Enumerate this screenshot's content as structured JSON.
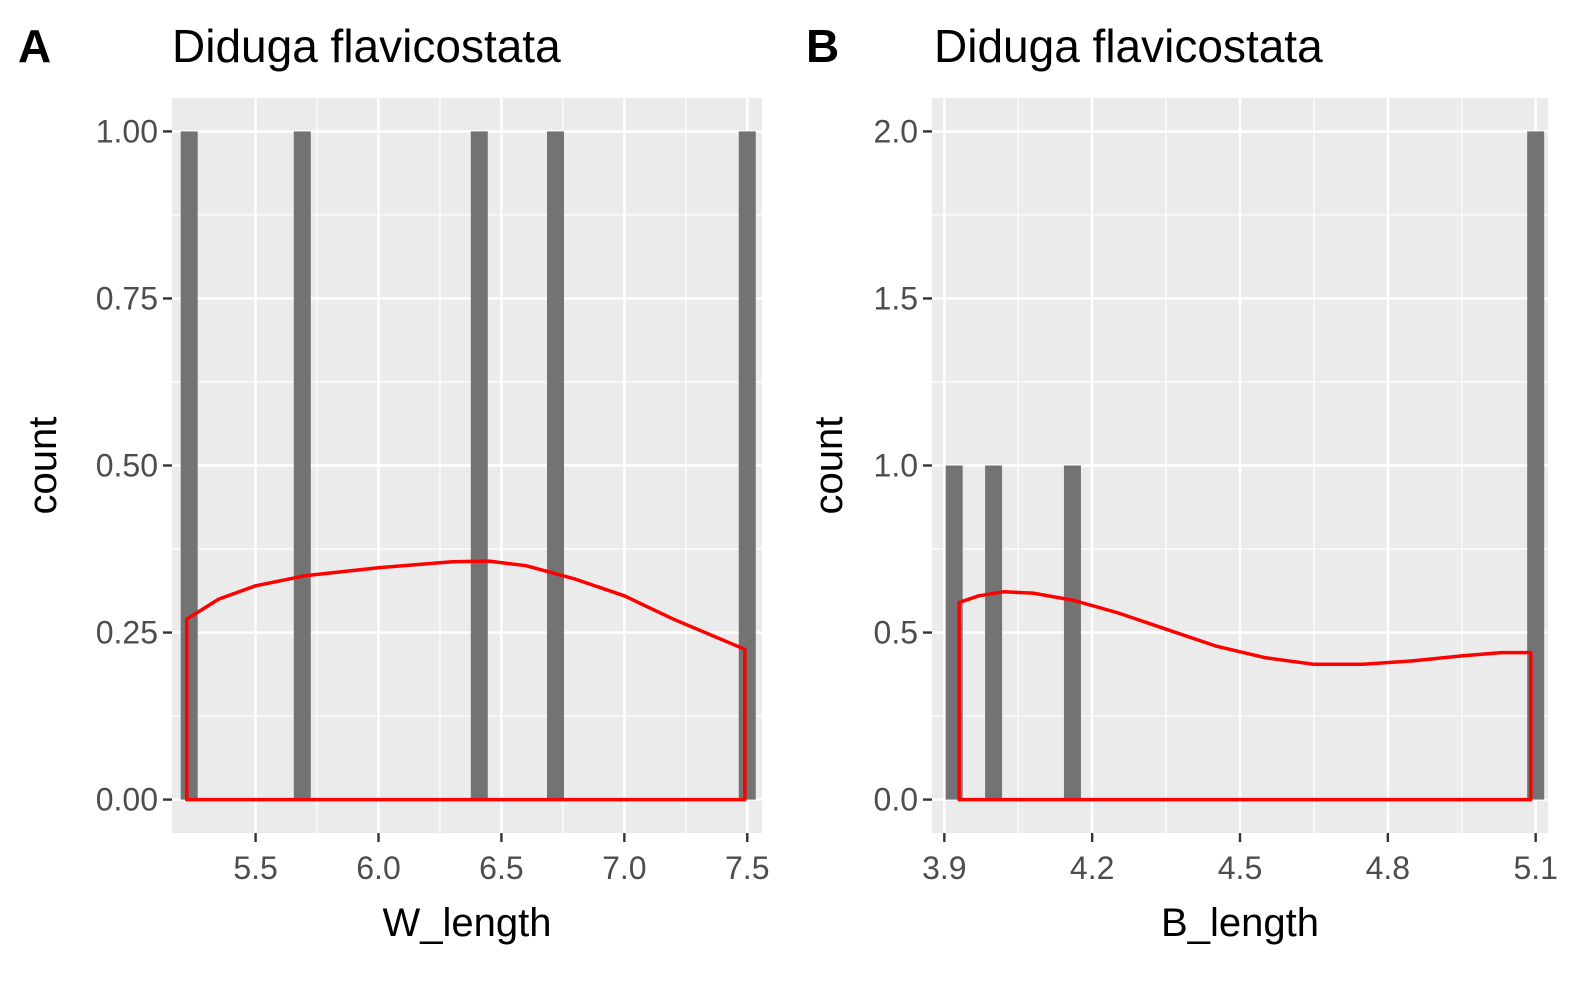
{
  "chart_data": [
    {
      "type": "bar",
      "panel_tag": "A",
      "title": "Diduga flavicostata",
      "xlabel": "W_length",
      "ylabel": "count",
      "xlim": [
        5.16,
        7.56
      ],
      "ylim": [
        -0.05,
        1.05
      ],
      "x_ticks": [
        "5.5",
        "6.0",
        "6.5",
        "7.0",
        "7.5"
      ],
      "y_ticks": [
        "0.00",
        "0.25",
        "0.50",
        "0.75",
        "1.00"
      ],
      "bars": [
        {
          "x": 5.23,
          "count": 1
        },
        {
          "x": 5.69,
          "count": 1
        },
        {
          "x": 6.41,
          "count": 1
        },
        {
          "x": 6.72,
          "count": 1
        },
        {
          "x": 7.5,
          "count": 1
        }
      ],
      "density_curve": {
        "x": [
          5.22,
          5.35,
          5.5,
          5.7,
          6.0,
          6.3,
          6.45,
          6.6,
          6.8,
          7.0,
          7.2,
          7.49
        ],
        "y": [
          0.27,
          0.3,
          0.32,
          0.335,
          0.347,
          0.356,
          0.357,
          0.35,
          0.33,
          0.305,
          0.27,
          0.225
        ]
      },
      "grid": true,
      "colors": {
        "bars": "#737373",
        "density": "#ff0000",
        "panel_bg": "#ebebeb",
        "grid": "#ffffff"
      }
    },
    {
      "type": "bar",
      "panel_tag": "B",
      "title": "Diduga flavicostata",
      "xlabel": "B_length",
      "ylabel": "count",
      "xlim": [
        3.875,
        5.125
      ],
      "ylim": [
        -0.1,
        2.1
      ],
      "x_ticks": [
        "3.9",
        "4.2",
        "4.5",
        "4.8",
        "5.1"
      ],
      "y_ticks": [
        "0.0",
        "0.5",
        "1.0",
        "1.5",
        "2.0"
      ],
      "bars": [
        {
          "x": 3.92,
          "count": 1
        },
        {
          "x": 4.0,
          "count": 1
        },
        {
          "x": 4.16,
          "count": 1
        },
        {
          "x": 5.1,
          "count": 2
        }
      ],
      "density_curve": {
        "x": [
          3.93,
          3.97,
          4.02,
          4.08,
          4.16,
          4.25,
          4.35,
          4.45,
          4.55,
          4.65,
          4.75,
          4.85,
          4.95,
          5.03,
          5.09
        ],
        "y": [
          0.59,
          0.61,
          0.622,
          0.618,
          0.597,
          0.56,
          0.51,
          0.46,
          0.425,
          0.405,
          0.405,
          0.415,
          0.43,
          0.44,
          0.44
        ]
      },
      "grid": true,
      "colors": {
        "bars": "#737373",
        "density": "#ff0000",
        "panel_bg": "#ebebeb",
        "grid": "#ffffff"
      }
    }
  ]
}
